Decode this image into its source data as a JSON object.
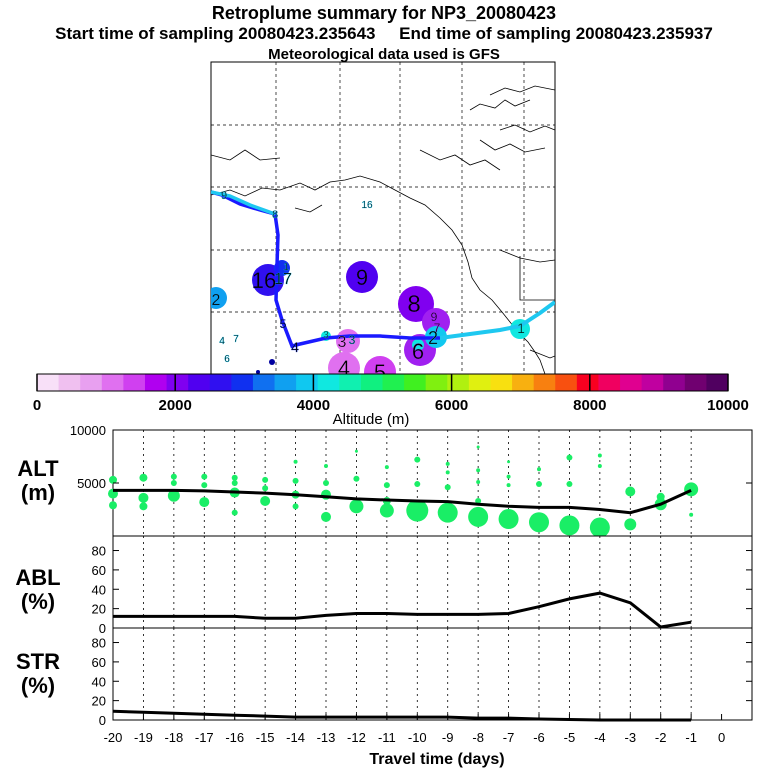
{
  "header": {
    "title": "Retroplume summary for NP3_20080423",
    "sampling": "Start time of sampling 20080423.235643     End time of sampling 20080423.235937",
    "met": "Meteorological data used is GFS"
  },
  "colors": {
    "track_main": "#1a1aff",
    "track_alt": "#1ec8f0",
    "alt_circles": "#1aee66",
    "colorbar": [
      "#f8e0f8",
      "#f0c0f0",
      "#e8a0f0",
      "#e070f0",
      "#d040f0",
      "#b000f0",
      "#8000f0",
      "#5000f0",
      "#3010f0",
      "#1030f0",
      "#1070f0",
      "#10a0f0",
      "#10c8f0",
      "#10e8e0",
      "#10f0b0",
      "#10f080",
      "#20f050",
      "#40f020",
      "#80f010",
      "#b0f010",
      "#e0f010",
      "#f8e010",
      "#f8b010",
      "#f88010",
      "#f85010",
      "#f80020",
      "#f00060",
      "#e00090",
      "#c000a0",
      "#900090",
      "#700070",
      "#500060"
    ]
  },
  "map_labels": [
    {
      "t": "9",
      "c": "#10c8f0"
    },
    {
      "t": "8",
      "c": "#10c8f0"
    },
    {
      "t": "16",
      "c": "#10c8f0"
    },
    {
      "t": "16",
      "c": "#3010f0"
    },
    {
      "t": "17",
      "c": "#10c8f0"
    },
    {
      "t": "9",
      "c": "#5000f0"
    },
    {
      "t": "2",
      "c": "#10a0f0"
    },
    {
      "t": "8",
      "c": "#8000f0"
    },
    {
      "t": "9",
      "c": "#a020f0"
    },
    {
      "t": "7",
      "c": "#b020f0"
    },
    {
      "t": "1",
      "c": "#10e8e0"
    },
    {
      "t": "5",
      "c": "#1030f0"
    },
    {
      "t": "4",
      "c": "#1030f0"
    },
    {
      "t": "3",
      "c": "#10e8e0"
    },
    {
      "t": "3",
      "c": "#e070f0"
    },
    {
      "t": "3",
      "c": "#10c8f0"
    },
    {
      "t": "2",
      "c": "#10c8f0"
    },
    {
      "t": "6",
      "c": "#a020f0"
    },
    {
      "t": "4",
      "c": "#e070f0"
    },
    {
      "t": "5",
      "c": "#d040f0"
    },
    {
      "t": "4",
      "c": "#10c8f0"
    },
    {
      "t": "7",
      "c": "#10c8f0"
    },
    {
      "t": "6",
      "c": "#10c8f0"
    },
    {
      "t": "1",
      "c": "#10c8f0"
    }
  ],
  "chart_data": [
    {
      "type": "colorbar",
      "title": "Altitude (m)",
      "range": [
        0,
        10000
      ],
      "ticks": [
        0,
        2000,
        4000,
        6000,
        8000,
        10000
      ],
      "tick_labels": [
        "0",
        "2000",
        "4000",
        "6000",
        "8000",
        "10000"
      ]
    },
    {
      "type": "line",
      "panel": "ALT",
      "ylabel": "ALT\n(m)",
      "ylabel_lines": [
        "ALT",
        "(m)"
      ],
      "ylim": [
        0,
        10000
      ],
      "yticks": [
        5000,
        10000
      ],
      "ytick_labels": [
        "5000",
        "10000"
      ],
      "x": [
        -20,
        -19,
        -18,
        -17,
        -16,
        -15,
        -14,
        -13,
        -12,
        -11,
        -10,
        -9,
        -8,
        -7,
        -6,
        -5,
        -4,
        -3,
        -2,
        -1
      ],
      "values": [
        4300,
        4300,
        4300,
        4250,
        4150,
        4050,
        3900,
        3700,
        3500,
        3400,
        3300,
        3250,
        3000,
        2800,
        2700,
        2700,
        2500,
        2200,
        3000,
        4300
      ],
      "circles": [
        {
          "x": -20,
          "y": 5300,
          "r": 4
        },
        {
          "x": -20,
          "y": 4000,
          "r": 5
        },
        {
          "x": -20,
          "y": 2900,
          "r": 4
        },
        {
          "x": -19,
          "y": 5500,
          "r": 4
        },
        {
          "x": -19,
          "y": 3600,
          "r": 5
        },
        {
          "x": -19,
          "y": 2800,
          "r": 4
        },
        {
          "x": -18,
          "y": 5600,
          "r": 3
        },
        {
          "x": -18,
          "y": 5000,
          "r": 3
        },
        {
          "x": -18,
          "y": 3800,
          "r": 6
        },
        {
          "x": -17,
          "y": 5600,
          "r": 3
        },
        {
          "x": -17,
          "y": 4800,
          "r": 3
        },
        {
          "x": -17,
          "y": 3200,
          "r": 5
        },
        {
          "x": -16,
          "y": 5500,
          "r": 3
        },
        {
          "x": -16,
          "y": 5000,
          "r": 3
        },
        {
          "x": -16,
          "y": 4100,
          "r": 5
        },
        {
          "x": -16,
          "y": 2200,
          "r": 3
        },
        {
          "x": -15,
          "y": 5300,
          "r": 3
        },
        {
          "x": -15,
          "y": 4500,
          "r": 3
        },
        {
          "x": -15,
          "y": 3300,
          "r": 5
        },
        {
          "x": -14,
          "y": 7000,
          "r": 2
        },
        {
          "x": -14,
          "y": 5200,
          "r": 3
        },
        {
          "x": -14,
          "y": 3900,
          "r": 4
        },
        {
          "x": -14,
          "y": 2800,
          "r": 3
        },
        {
          "x": -13,
          "y": 6600,
          "r": 2
        },
        {
          "x": -13,
          "y": 5000,
          "r": 3
        },
        {
          "x": -13,
          "y": 3900,
          "r": 5
        },
        {
          "x": -13,
          "y": 1800,
          "r": 5
        },
        {
          "x": -12,
          "y": 8000,
          "r": 1.5
        },
        {
          "x": -12,
          "y": 5400,
          "r": 3
        },
        {
          "x": -12,
          "y": 2800,
          "r": 7
        },
        {
          "x": -11,
          "y": 6500,
          "r": 2
        },
        {
          "x": -11,
          "y": 4800,
          "r": 3
        },
        {
          "x": -11,
          "y": 3300,
          "r": 4
        },
        {
          "x": -11,
          "y": 2400,
          "r": 7
        },
        {
          "x": -10,
          "y": 7200,
          "r": 3
        },
        {
          "x": -10,
          "y": 4900,
          "r": 3
        },
        {
          "x": -10,
          "y": 2400,
          "r": 11
        },
        {
          "x": -9,
          "y": 6800,
          "r": 2
        },
        {
          "x": -9,
          "y": 6000,
          "r": 2
        },
        {
          "x": -9,
          "y": 4600,
          "r": 3
        },
        {
          "x": -9,
          "y": 2200,
          "r": 10
        },
        {
          "x": -8,
          "y": 8400,
          "r": 1.5
        },
        {
          "x": -8,
          "y": 6200,
          "r": 2
        },
        {
          "x": -8,
          "y": 5100,
          "r": 2
        },
        {
          "x": -8,
          "y": 3300,
          "r": 3
        },
        {
          "x": -8,
          "y": 1800,
          "r": 10
        },
        {
          "x": -7,
          "y": 7000,
          "r": 1.5
        },
        {
          "x": -7,
          "y": 5600,
          "r": 2
        },
        {
          "x": -7,
          "y": 4800,
          "r": 2
        },
        {
          "x": -7,
          "y": 1600,
          "r": 10
        },
        {
          "x": -6,
          "y": 6300,
          "r": 2
        },
        {
          "x": -6,
          "y": 4900,
          "r": 3
        },
        {
          "x": -6,
          "y": 1300,
          "r": 10
        },
        {
          "x": -5,
          "y": 7400,
          "r": 3
        },
        {
          "x": -5,
          "y": 4900,
          "r": 3
        },
        {
          "x": -5,
          "y": 1000,
          "r": 10
        },
        {
          "x": -4,
          "y": 7600,
          "r": 2
        },
        {
          "x": -4,
          "y": 6600,
          "r": 2
        },
        {
          "x": -4,
          "y": 800,
          "r": 10
        },
        {
          "x": -3,
          "y": 4200,
          "r": 5
        },
        {
          "x": -3,
          "y": 1100,
          "r": 6
        },
        {
          "x": -2,
          "y": 3000,
          "r": 6
        },
        {
          "x": -2,
          "y": 3700,
          "r": 4
        },
        {
          "x": -1,
          "y": 4400,
          "r": 7
        },
        {
          "x": -1,
          "y": 2000,
          "r": 2
        }
      ]
    },
    {
      "type": "line",
      "panel": "ABL",
      "ylabel": "ABL\n(%)",
      "ylabel_lines": [
        "ABL",
        "(%)"
      ],
      "ylim": [
        0,
        95
      ],
      "yticks": [
        0,
        20,
        40,
        60,
        80
      ],
      "ytick_labels": [
        "0",
        "20",
        "40",
        "60",
        "80"
      ],
      "x": [
        -20,
        -19,
        -18,
        -17,
        -16,
        -15,
        -14,
        -13,
        -12,
        -11,
        -10,
        -9,
        -8,
        -7,
        -6,
        -5,
        -4,
        -3,
        -2,
        -1
      ],
      "values": [
        12,
        12,
        12,
        12,
        12,
        10,
        10,
        13,
        15,
        15,
        14,
        14,
        14,
        15,
        22,
        30,
        36,
        26,
        1,
        6
      ]
    },
    {
      "type": "line",
      "panel": "STR",
      "ylabel": "STR\n(%)",
      "ylabel_lines": [
        "STR",
        "(%)"
      ],
      "ylim": [
        0,
        95
      ],
      "yticks": [
        0,
        20,
        40,
        60,
        80
      ],
      "ytick_labels": [
        "0",
        "20",
        "40",
        "60",
        "80"
      ],
      "x": [
        -20,
        -19,
        -18,
        -17,
        -16,
        -15,
        -14,
        -13,
        -12,
        -11,
        -10,
        -9,
        -8,
        -7,
        -6,
        -5,
        -4,
        -3,
        -2,
        -1
      ],
      "values": [
        9,
        8,
        7,
        6,
        5,
        4,
        3,
        3,
        3,
        3,
        3,
        3,
        2,
        2,
        1,
        0.5,
        0,
        0,
        0,
        0
      ],
      "xlabel": "Travel time (days)",
      "xticks": [
        -20,
        -19,
        -18,
        -17,
        -16,
        -15,
        -14,
        -13,
        -12,
        -11,
        -10,
        -9,
        -8,
        -7,
        -6,
        -5,
        -4,
        -3,
        -2,
        -1,
        0
      ],
      "xtick_labels": [
        "-20",
        "-19",
        "-18",
        "-17",
        "-16",
        "-15",
        "-14",
        "-13",
        "-12",
        "-11",
        "-10",
        "-9",
        "-8",
        "-7",
        "-6",
        "-5",
        "-4",
        "-3",
        "-2",
        "-1",
        "0"
      ]
    }
  ]
}
